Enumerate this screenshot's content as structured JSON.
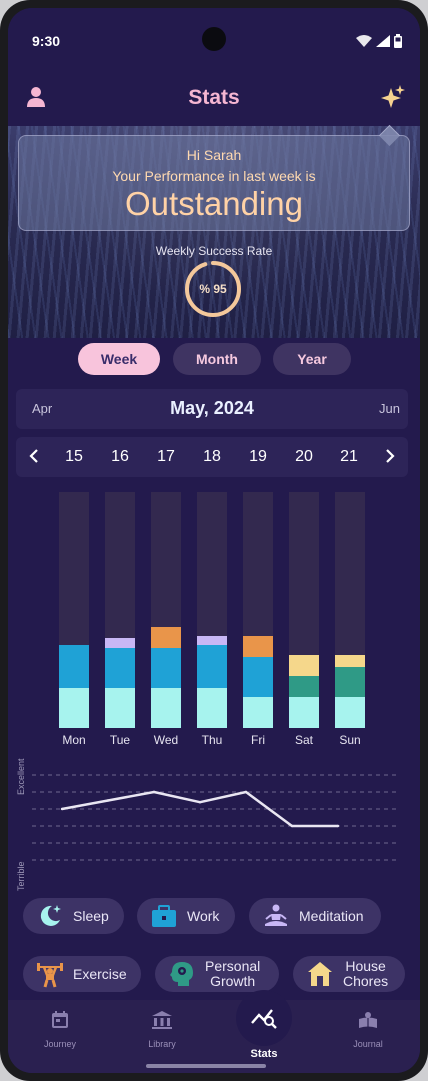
{
  "status_bar": {
    "time": "9:30"
  },
  "header": {
    "title": "Stats",
    "user_icon": "user-icon",
    "sparkle_icon": "sparkle-icon"
  },
  "performance": {
    "greeting": "Hi Sarah",
    "message": "Your Performance in last week is",
    "rating": "Outstanding",
    "rate_label": "Weekly Success Rate",
    "rate_text": "% 95",
    "rate_value": 95
  },
  "periods": [
    {
      "label": "Week",
      "active": true
    },
    {
      "label": "Month",
      "active": false
    },
    {
      "label": "Year",
      "active": false
    }
  ],
  "month_nav": {
    "prev": "Apr",
    "current": "May, 2024",
    "next": "Jun"
  },
  "days": [
    "15",
    "16",
    "17",
    "18",
    "19",
    "20",
    "21"
  ],
  "colors": {
    "sleep": "#a7f3ee",
    "work": "#1fa2d6",
    "meditation": "#c8b7f5",
    "exercise": "#e9954a",
    "personal_growth": "#2f9a86",
    "house_chores": "#f5d78b",
    "track": "#33294f",
    "accent_pink": "#f8c4dc"
  },
  "chart_data": [
    {
      "type": "bar",
      "stacked": true,
      "categories": [
        "Mon",
        "Tue",
        "Wed",
        "Thu",
        "Fri",
        "Sat",
        "Sun"
      ],
      "scale_max": 1.0,
      "series": [
        {
          "name": "Sleep",
          "color": "#a7f3ee",
          "values": [
            0.17,
            0.17,
            0.17,
            0.17,
            0.13,
            0.13,
            0.13
          ]
        },
        {
          "name": "Work",
          "color": "#1fa2d6",
          "values": [
            0.18,
            0.17,
            0.17,
            0.18,
            0.17,
            0,
            0
          ]
        },
        {
          "name": "Personal Growth",
          "color": "#2f9a86",
          "values": [
            0,
            0,
            0,
            0,
            0,
            0.09,
            0.13
          ]
        },
        {
          "name": "Meditation",
          "color": "#c8b7f5",
          "values": [
            0,
            0.04,
            0,
            0.04,
            0,
            0,
            0
          ]
        },
        {
          "name": "Exercise",
          "color": "#e9954a",
          "values": [
            0,
            0,
            0.09,
            0,
            0.09,
            0,
            0
          ]
        },
        {
          "name": "House Chores",
          "color": "#f5d78b",
          "values": [
            0,
            0,
            0,
            0,
            0,
            0.09,
            0.05
          ]
        }
      ]
    },
    {
      "type": "line",
      "ylabel_top": "Excellent",
      "ylabel_bottom": "Terrible",
      "ylim": [
        0,
        6
      ],
      "grid": true,
      "x": [
        "Mon",
        "Tue",
        "Wed",
        "Thu",
        "Fri",
        "Sat",
        "Sun"
      ],
      "series": [
        {
          "values": [
            4,
            4.5,
            5,
            4.4,
            5,
            3,
            3
          ]
        }
      ]
    }
  ],
  "categories": [
    {
      "label": "Sleep",
      "icon": "moon-icon"
    },
    {
      "label": "Work",
      "icon": "briefcase-icon"
    },
    {
      "label": "Meditation",
      "icon": "meditation-icon"
    },
    {
      "label": "Exercise",
      "icon": "weightlifter-icon"
    },
    {
      "label": "Personal Growth",
      "icon": "brain-head-icon"
    },
    {
      "label": "House Chores",
      "icon": "house-icon"
    }
  ],
  "bottom_nav": [
    {
      "label": "Journey",
      "icon": "calendar-icon",
      "active": false
    },
    {
      "label": "Library",
      "icon": "library-icon",
      "active": false
    },
    {
      "label": "Stats",
      "icon": "stats-icon",
      "active": true
    },
    {
      "label": "Journal",
      "icon": "journal-icon",
      "active": false
    }
  ]
}
